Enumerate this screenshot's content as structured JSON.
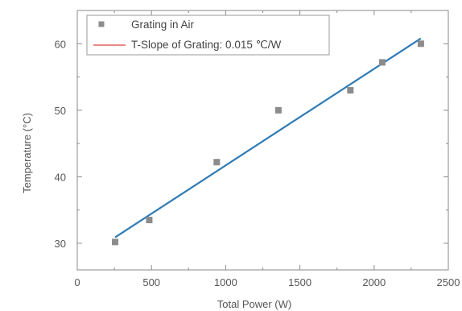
{
  "chart_data": {
    "type": "scatter",
    "xlabel": "Total Power (W)",
    "ylabel": "Temperature (°C)",
    "xlim": [
      0,
      2500
    ],
    "ylim": [
      26,
      65
    ],
    "x_ticks": [
      0,
      500,
      1000,
      1500,
      2000,
      2500
    ],
    "y_ticks": [
      30,
      40,
      50,
      60
    ],
    "x_tick_labels": [
      "0",
      "500",
      "1000",
      "1500",
      "2000",
      "2500"
    ],
    "y_tick_labels": [
      "30",
      "40",
      "50",
      "60"
    ],
    "grid": false,
    "legend_position": "top-left",
    "series": [
      {
        "name": "Grating in Air",
        "kind": "scatter",
        "marker": "square",
        "color": "#8c8c8c",
        "x": [
          255,
          485,
          940,
          1355,
          1840,
          2055,
          2315
        ],
        "y": [
          30.2,
          33.5,
          42.2,
          50.0,
          53.0,
          57.2,
          60.0
        ]
      },
      {
        "name": "T-Slope of Grating: 0.015 ℃/W",
        "kind": "line",
        "legend_color": "#e04040",
        "color": "#2f7bb5",
        "x": [
          255,
          2315
        ],
        "y": [
          30.9,
          60.8
        ]
      }
    ]
  }
}
